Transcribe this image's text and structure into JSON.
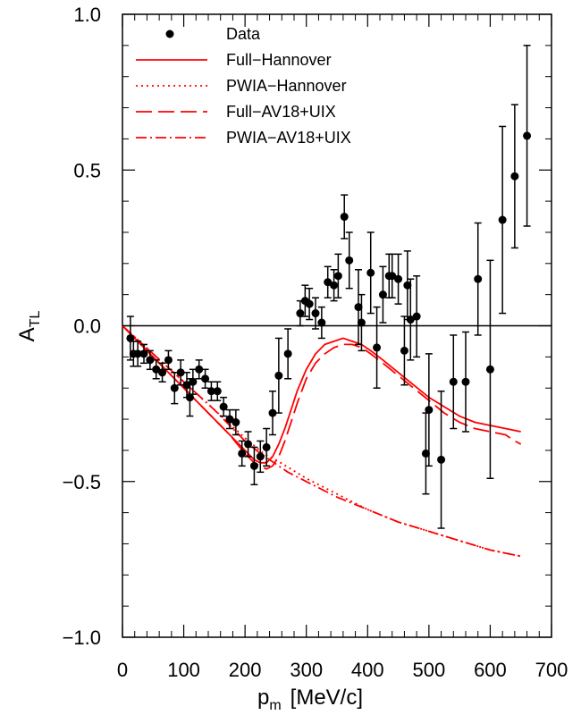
{
  "chart_data": {
    "type": "scatter",
    "xlabel": {
      "main": "p",
      "sub": "m",
      "unit": "[MeV/c]"
    },
    "ylabel": {
      "main": "A",
      "sub": "TL"
    },
    "xlim": [
      0,
      700
    ],
    "ylim": [
      -1.0,
      1.0
    ],
    "x_ticks": [
      "0",
      "100",
      "200",
      "300",
      "400",
      "500",
      "600",
      "700"
    ],
    "y_ticks": [
      "−1.0",
      "−0.5",
      "0.0",
      "0.5",
      "1.0"
    ],
    "zero_line": true,
    "grid": false,
    "legend_position": "top-left",
    "colors": {
      "data": "#000000",
      "model": "#ff0000"
    },
    "legend": [
      {
        "label": "Data",
        "style": "marker"
      },
      {
        "label": "Full−Hannover",
        "style": "solid"
      },
      {
        "label": "PWIA−Hannover",
        "style": "dotted"
      },
      {
        "label": "Full−AV18+UIX",
        "style": "dashed"
      },
      {
        "label": "PWIA−AV18+UIX",
        "style": "dashdot"
      }
    ],
    "data_points": [
      {
        "x": 13,
        "y": -0.04,
        "err": 0.07
      },
      {
        "x": 18,
        "y": -0.09,
        "err": 0.04
      },
      {
        "x": 25,
        "y": -0.09,
        "err": 0.04
      },
      {
        "x": 35,
        "y": -0.09,
        "err": 0.03
      },
      {
        "x": 45,
        "y": -0.11,
        "err": 0.03
      },
      {
        "x": 55,
        "y": -0.14,
        "err": 0.03
      },
      {
        "x": 65,
        "y": -0.15,
        "err": 0.03
      },
      {
        "x": 75,
        "y": -0.11,
        "err": 0.03
      },
      {
        "x": 85,
        "y": -0.2,
        "err": 0.05
      },
      {
        "x": 95,
        "y": -0.15,
        "err": 0.04
      },
      {
        "x": 105,
        "y": -0.19,
        "err": 0.04
      },
      {
        "x": 110,
        "y": -0.23,
        "err": 0.06
      },
      {
        "x": 115,
        "y": -0.18,
        "err": 0.04
      },
      {
        "x": 125,
        "y": -0.14,
        "err": 0.03
      },
      {
        "x": 135,
        "y": -0.17,
        "err": 0.03
      },
      {
        "x": 145,
        "y": -0.21,
        "err": 0.03
      },
      {
        "x": 155,
        "y": -0.21,
        "err": 0.03
      },
      {
        "x": 165,
        "y": -0.26,
        "err": 0.03
      },
      {
        "x": 175,
        "y": -0.3,
        "err": 0.03
      },
      {
        "x": 185,
        "y": -0.31,
        "err": 0.04
      },
      {
        "x": 195,
        "y": -0.41,
        "err": 0.04
      },
      {
        "x": 205,
        "y": -0.38,
        "err": 0.04
      },
      {
        "x": 215,
        "y": -0.45,
        "err": 0.06
      },
      {
        "x": 225,
        "y": -0.42,
        "err": 0.05
      },
      {
        "x": 235,
        "y": -0.39,
        "err": 0.06
      },
      {
        "x": 245,
        "y": -0.28,
        "err": 0.07
      },
      {
        "x": 255,
        "y": -0.16,
        "err": 0.12
      },
      {
        "x": 270,
        "y": -0.09,
        "err": 0.08
      },
      {
        "x": 290,
        "y": 0.04,
        "err": 0.04
      },
      {
        "x": 298,
        "y": 0.08,
        "err": 0.05
      },
      {
        "x": 305,
        "y": 0.07,
        "err": 0.05
      },
      {
        "x": 315,
        "y": 0.04,
        "err": 0.05
      },
      {
        "x": 325,
        "y": 0.01,
        "err": 0.05
      },
      {
        "x": 335,
        "y": 0.14,
        "err": 0.05
      },
      {
        "x": 345,
        "y": 0.13,
        "err": 0.05
      },
      {
        "x": 352,
        "y": 0.16,
        "err": 0.07
      },
      {
        "x": 362,
        "y": 0.35,
        "err": 0.07
      },
      {
        "x": 370,
        "y": 0.21,
        "err": 0.09
      },
      {
        "x": 385,
        "y": 0.06,
        "err": 0.12
      },
      {
        "x": 390,
        "y": 0.01,
        "err": 0.09
      },
      {
        "x": 405,
        "y": 0.17,
        "err": 0.13
      },
      {
        "x": 415,
        "y": -0.07,
        "err": 0.13
      },
      {
        "x": 425,
        "y": 0.1,
        "err": 0.09
      },
      {
        "x": 435,
        "y": 0.16,
        "err": 0.07
      },
      {
        "x": 440,
        "y": 0.16,
        "err": 0.07
      },
      {
        "x": 450,
        "y": 0.15,
        "err": 0.08
      },
      {
        "x": 460,
        "y": -0.08,
        "err": 0.11
      },
      {
        "x": 465,
        "y": 0.13,
        "err": 0.11
      },
      {
        "x": 470,
        "y": 0.02,
        "err": 0.13
      },
      {
        "x": 480,
        "y": 0.03,
        "err": 0.13
      },
      {
        "x": 495,
        "y": -0.41,
        "err": 0.13
      },
      {
        "x": 500,
        "y": -0.27,
        "err": 0.18
      },
      {
        "x": 520,
        "y": -0.43,
        "err": 0.22
      },
      {
        "x": 540,
        "y": -0.18,
        "err": 0.15
      },
      {
        "x": 560,
        "y": -0.18,
        "err": 0.16
      },
      {
        "x": 580,
        "y": 0.15,
        "err": 0.18
      },
      {
        "x": 600,
        "y": -0.14,
        "err": 0.35
      },
      {
        "x": 620,
        "y": 0.34,
        "err": 0.3
      },
      {
        "x": 640,
        "y": 0.48,
        "err": 0.23
      },
      {
        "x": 660,
        "y": 0.61,
        "err": 0.29
      }
    ],
    "curves": [
      {
        "name": "Full−Hannover",
        "style": "solid",
        "x": [
          0,
          25,
          50,
          75,
          100,
          125,
          150,
          175,
          200,
          215,
          225,
          235,
          245,
          255,
          265,
          275,
          285,
          300,
          315,
          330,
          345,
          360,
          375,
          390,
          405,
          425,
          450,
          475,
          500,
          525,
          550,
          575,
          600,
          625,
          650
        ],
        "y": [
          0.0,
          -0.05,
          -0.1,
          -0.15,
          -0.2,
          -0.25,
          -0.3,
          -0.35,
          -0.4,
          -0.43,
          -0.44,
          -0.44,
          -0.42,
          -0.38,
          -0.33,
          -0.27,
          -0.21,
          -0.14,
          -0.09,
          -0.06,
          -0.05,
          -0.04,
          -0.05,
          -0.06,
          -0.08,
          -0.11,
          -0.15,
          -0.19,
          -0.23,
          -0.26,
          -0.29,
          -0.31,
          -0.32,
          -0.33,
          -0.34
        ]
      },
      {
        "name": "PWIA−Hannover",
        "style": "dotted",
        "x": [
          0,
          50,
          100,
          150,
          200,
          230,
          250,
          300,
          350,
          400,
          450,
          500,
          550,
          600,
          650
        ],
        "y": [
          0.0,
          -0.09,
          -0.18,
          -0.27,
          -0.36,
          -0.41,
          -0.43,
          -0.49,
          -0.54,
          -0.59,
          -0.63,
          -0.66,
          -0.69,
          -0.72,
          -0.74
        ]
      },
      {
        "name": "Full−AV18+UIX",
        "style": "dashed",
        "x": [
          0,
          25,
          50,
          75,
          100,
          125,
          150,
          175,
          200,
          215,
          225,
          235,
          245,
          255,
          265,
          275,
          285,
          300,
          315,
          330,
          345,
          360,
          375,
          390,
          405,
          425,
          450,
          475,
          500,
          525,
          550,
          575,
          600,
          625,
          640,
          650
        ],
        "y": [
          0.0,
          -0.05,
          -0.1,
          -0.15,
          -0.2,
          -0.25,
          -0.3,
          -0.35,
          -0.41,
          -0.44,
          -0.45,
          -0.46,
          -0.45,
          -0.42,
          -0.37,
          -0.31,
          -0.25,
          -0.17,
          -0.12,
          -0.09,
          -0.07,
          -0.06,
          -0.06,
          -0.07,
          -0.09,
          -0.12,
          -0.16,
          -0.2,
          -0.24,
          -0.28,
          -0.31,
          -0.33,
          -0.34,
          -0.35,
          -0.37,
          -0.38
        ]
      },
      {
        "name": "PWIA−AV18+UIX",
        "style": "dashdot",
        "x": [
          0,
          50,
          100,
          150,
          200,
          225,
          240,
          255,
          270,
          300,
          350,
          400,
          450,
          500,
          550,
          600,
          650
        ],
        "y": [
          0.0,
          -0.09,
          -0.18,
          -0.27,
          -0.37,
          -0.41,
          -0.43,
          -0.45,
          -0.47,
          -0.5,
          -0.55,
          -0.59,
          -0.63,
          -0.66,
          -0.69,
          -0.72,
          -0.74
        ]
      }
    ]
  }
}
